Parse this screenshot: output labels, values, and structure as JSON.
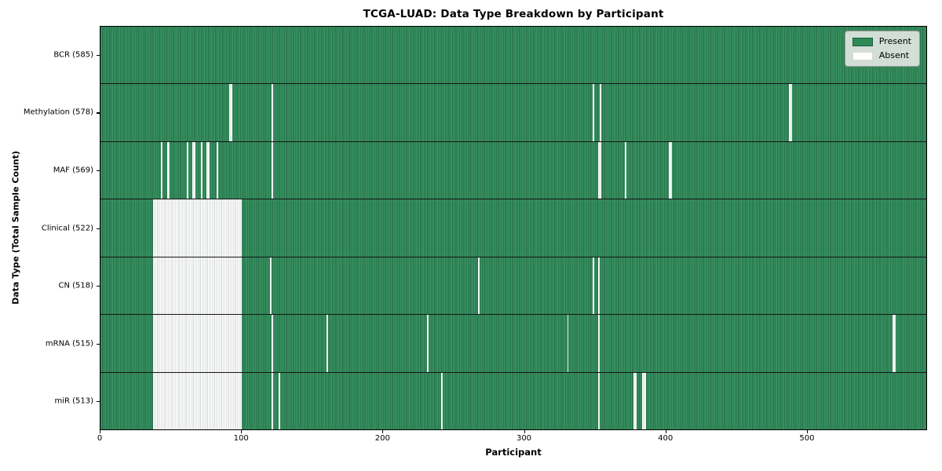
{
  "title": "TCGA-LUAD: Data Type Breakdown by Participant",
  "xlabel": "Participant",
  "ylabel": "Data Type (Total Sample Count)",
  "legend": {
    "present_label": "Present",
    "absent_label": "Absent"
  },
  "colors": {
    "present": "#2e8b57",
    "present_edge": "#1b5e3b",
    "absent": "#ffffff",
    "legend_background": "#e1e5e1"
  },
  "chart_data": {
    "type": "heatmap",
    "title": "TCGA-LUAD: Data Type Breakdown by Participant",
    "xlabel": "Participant",
    "ylabel": "Data Type (Total Sample Count)",
    "legend_entries": [
      "Present",
      "Absent"
    ],
    "legend_position": "upper right",
    "n_participants": 585,
    "x_range": [
      0,
      585
    ],
    "xticks": [
      0,
      100,
      200,
      300,
      400,
      500
    ],
    "cell_states": [
      "present",
      "absent"
    ],
    "rows": [
      {
        "name": "BCR",
        "label": "BCR (585)",
        "count": 585,
        "absent": []
      },
      {
        "name": "Methylation",
        "label": "Methylation (578)",
        "count": 578,
        "absent": [
          [
            91,
            92
          ],
          121,
          348,
          353,
          [
            487,
            488
          ]
        ]
      },
      {
        "name": "MAF",
        "label": "MAF (569)",
        "count": 569,
        "absent": [
          43,
          47,
          48,
          61,
          65,
          66,
          71,
          [
            75,
            76
          ],
          82,
          121,
          [
            352,
            353
          ],
          371,
          [
            402,
            403
          ]
        ]
      },
      {
        "name": "Clinical",
        "label": "Clinical (522)",
        "count": 522,
        "absent": [
          [
            37,
            99
          ]
        ]
      },
      {
        "name": "CN",
        "label": "CN (518)",
        "count": 518,
        "absent": [
          [
            37,
            99
          ],
          120,
          267,
          348,
          352
        ]
      },
      {
        "name": "mRNA",
        "label": "mRNA (515)",
        "count": 515,
        "absent": [
          [
            37,
            99
          ],
          121,
          160,
          231,
          330,
          352,
          [
            560,
            561
          ]
        ]
      },
      {
        "name": "miR",
        "label": "miR (513)",
        "count": 513,
        "absent": [
          [
            37,
            99
          ],
          121,
          126,
          241,
          352,
          [
            377,
            378
          ],
          [
            383,
            385
          ]
        ]
      }
    ]
  }
}
